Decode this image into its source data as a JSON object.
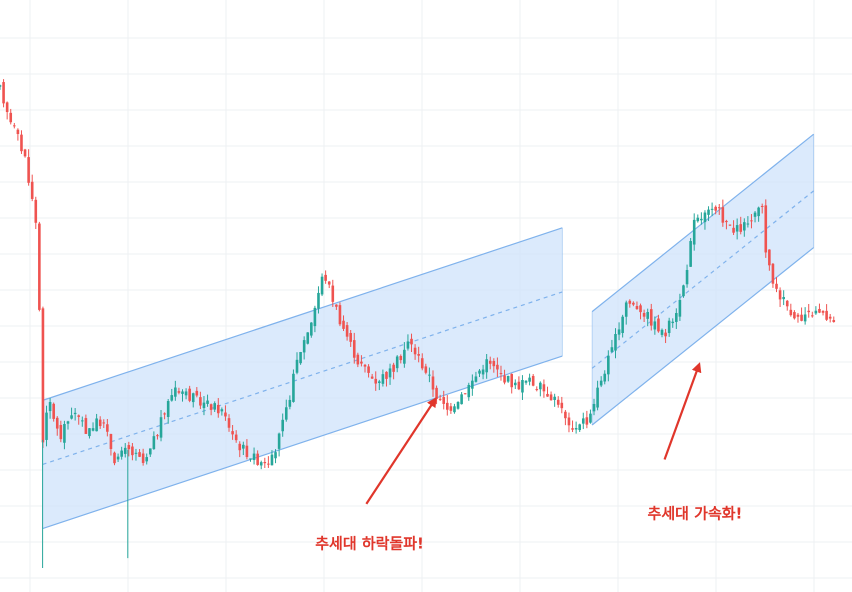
{
  "chart_data": {
    "type": "candlestick",
    "title": "",
    "xlabel": "",
    "ylabel": "",
    "grid": true,
    "colors": {
      "up": "#26a69a",
      "down": "#ef5350",
      "channel_fill": "#cfe3fb",
      "channel_line": "#7fb2ec",
      "arrow": "#e0362b"
    },
    "ylim": [
      0,
      100
    ],
    "xlim": [
      0,
      100
    ],
    "price_path": [
      [
        0,
        97
      ],
      [
        1.5,
        90
      ],
      [
        3,
        83
      ],
      [
        4.4,
        68
      ],
      [
        5,
        26
      ],
      [
        5.8,
        34
      ],
      [
        7,
        26
      ],
      [
        8.5,
        32
      ],
      [
        10,
        28
      ],
      [
        12,
        30
      ],
      [
        13.5,
        22
      ],
      [
        15,
        24
      ],
      [
        17,
        21
      ],
      [
        19,
        30
      ],
      [
        20.5,
        37
      ],
      [
        23,
        34
      ],
      [
        26,
        32
      ],
      [
        28,
        25
      ],
      [
        30,
        22
      ],
      [
        32,
        22
      ],
      [
        33.5,
        31
      ],
      [
        35,
        43
      ],
      [
        36.5,
        50
      ],
      [
        38,
        60
      ],
      [
        40,
        50
      ],
      [
        42,
        42
      ],
      [
        44,
        38
      ],
      [
        46,
        40
      ],
      [
        48,
        46
      ],
      [
        50,
        40
      ],
      [
        51.5,
        34
      ],
      [
        52.5,
        32
      ],
      [
        54,
        35
      ],
      [
        55.5,
        38
      ],
      [
        57,
        42
      ],
      [
        59,
        39
      ],
      [
        60.5,
        37
      ],
      [
        62,
        38
      ],
      [
        64,
        36
      ],
      [
        65.5,
        34
      ],
      [
        67,
        27
      ],
      [
        68,
        30
      ],
      [
        69,
        30
      ],
      [
        70.5,
        38
      ],
      [
        72,
        45
      ],
      [
        73.5,
        54
      ],
      [
        75,
        53
      ],
      [
        76.5,
        50
      ],
      [
        78,
        47
      ],
      [
        80,
        55
      ],
      [
        81.5,
        70
      ],
      [
        83,
        72
      ],
      [
        84.5,
        72
      ],
      [
        86,
        68
      ],
      [
        88,
        70
      ],
      [
        89.5,
        73
      ],
      [
        90,
        62
      ],
      [
        91,
        57
      ],
      [
        92.5,
        53
      ],
      [
        94,
        50
      ],
      [
        95.5,
        52
      ],
      [
        97,
        51
      ],
      [
        98,
        49
      ]
    ],
    "wicks": [
      [
        5,
        0
      ],
      [
        15,
        2
      ]
    ],
    "channels": [
      {
        "name": "",
        "start": {
          "x": 5,
          "upper": 34,
          "lower": 8
        },
        "end": {
          "x": 66,
          "upper": 69,
          "lower": 43
        }
      },
      {
        "name": "",
        "start": {
          "x": 69.5,
          "upper": 52,
          "lower": 29
        },
        "end": {
          "x": 95.5,
          "upper": 88,
          "lower": 65
        }
      }
    ],
    "annotations": [
      {
        "text": "추세대 하락돌파!",
        "x": 37,
        "y": 4,
        "arrow_from": [
          43,
          13
        ],
        "arrow_to": [
          51,
          34
        ]
      },
      {
        "text": "추세대 가속화!",
        "x": 76,
        "y": 10,
        "arrow_from": [
          78,
          22
        ],
        "arrow_to": [
          82,
          41
        ]
      }
    ]
  }
}
